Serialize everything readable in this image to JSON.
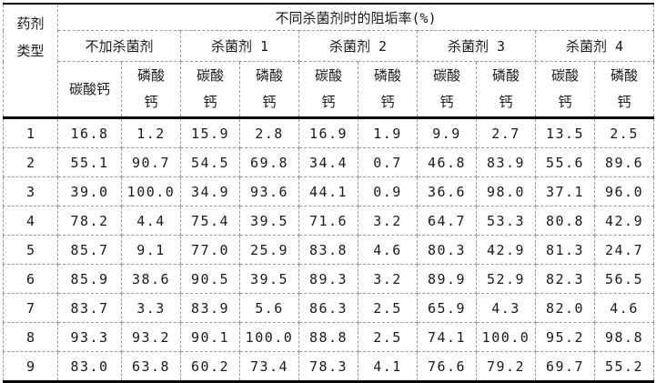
{
  "table": {
    "corner_header": "药剂\n类型",
    "main_header": "不同杀菌剂时的阻垢率(%)",
    "groups": [
      {
        "label": "不加杀菌剂"
      },
      {
        "label": "杀菌剂 1"
      },
      {
        "label": "杀菌剂 2"
      },
      {
        "label": "杀菌剂 3"
      },
      {
        "label": "杀菌剂 4"
      }
    ],
    "sub_headers": [
      "碳酸钙",
      "磷酸\n钙",
      "碳酸\n钙",
      "磷酸\n钙",
      "碳酸\n钙",
      "磷酸\n钙",
      "碳酸\n钙",
      "磷酸\n钙",
      "碳酸\n钙",
      "磷酸\n钙"
    ],
    "rows": [
      {
        "id": "1",
        "values": [
          "16.8",
          "1.2",
          "15.9",
          "2.8",
          "16.9",
          "1.9",
          "9.9",
          "2.7",
          "13.5",
          "2.5"
        ]
      },
      {
        "id": "2",
        "values": [
          "55.1",
          "90.7",
          "54.5",
          "69.8",
          "34.4",
          "0.7",
          "46.8",
          "83.9",
          "55.6",
          "89.6"
        ]
      },
      {
        "id": "3",
        "values": [
          "39.0",
          "100.0",
          "34.9",
          "93.6",
          "44.1",
          "0.9",
          "36.6",
          "98.0",
          "37.1",
          "96.0"
        ]
      },
      {
        "id": "4",
        "values": [
          "78.2",
          "4.4",
          "75.4",
          "39.5",
          "71.6",
          "3.2",
          "64.7",
          "53.3",
          "80.8",
          "42.9"
        ]
      },
      {
        "id": "5",
        "values": [
          "85.7",
          "9.1",
          "77.0",
          "25.9",
          "83.8",
          "4.6",
          "80.3",
          "42.9",
          "81.3",
          "24.7"
        ]
      },
      {
        "id": "6",
        "values": [
          "85.9",
          "38.6",
          "90.5",
          "39.5",
          "89.3",
          "3.2",
          "89.9",
          "52.9",
          "82.3",
          "56.5"
        ]
      },
      {
        "id": "7",
        "values": [
          "83.7",
          "3.3",
          "83.9",
          "5.6",
          "86.3",
          "2.5",
          "65.9",
          "4.3",
          "82.0",
          "4.6"
        ]
      },
      {
        "id": "8",
        "values": [
          "93.3",
          "93.2",
          "90.1",
          "100.0",
          "88.8",
          "2.5",
          "74.1",
          "100.0",
          "95.2",
          "98.8"
        ]
      },
      {
        "id": "9",
        "values": [
          "83.0",
          "63.8",
          "60.2",
          "73.4",
          "78.3",
          "4.1",
          "76.6",
          "79.2",
          "69.7",
          "55.2"
        ]
      }
    ],
    "colors": {
      "border_solid": "#000000",
      "border_dashed": "#9a9a9a",
      "text": "#1a1a1a",
      "background": "#ffffff"
    }
  }
}
